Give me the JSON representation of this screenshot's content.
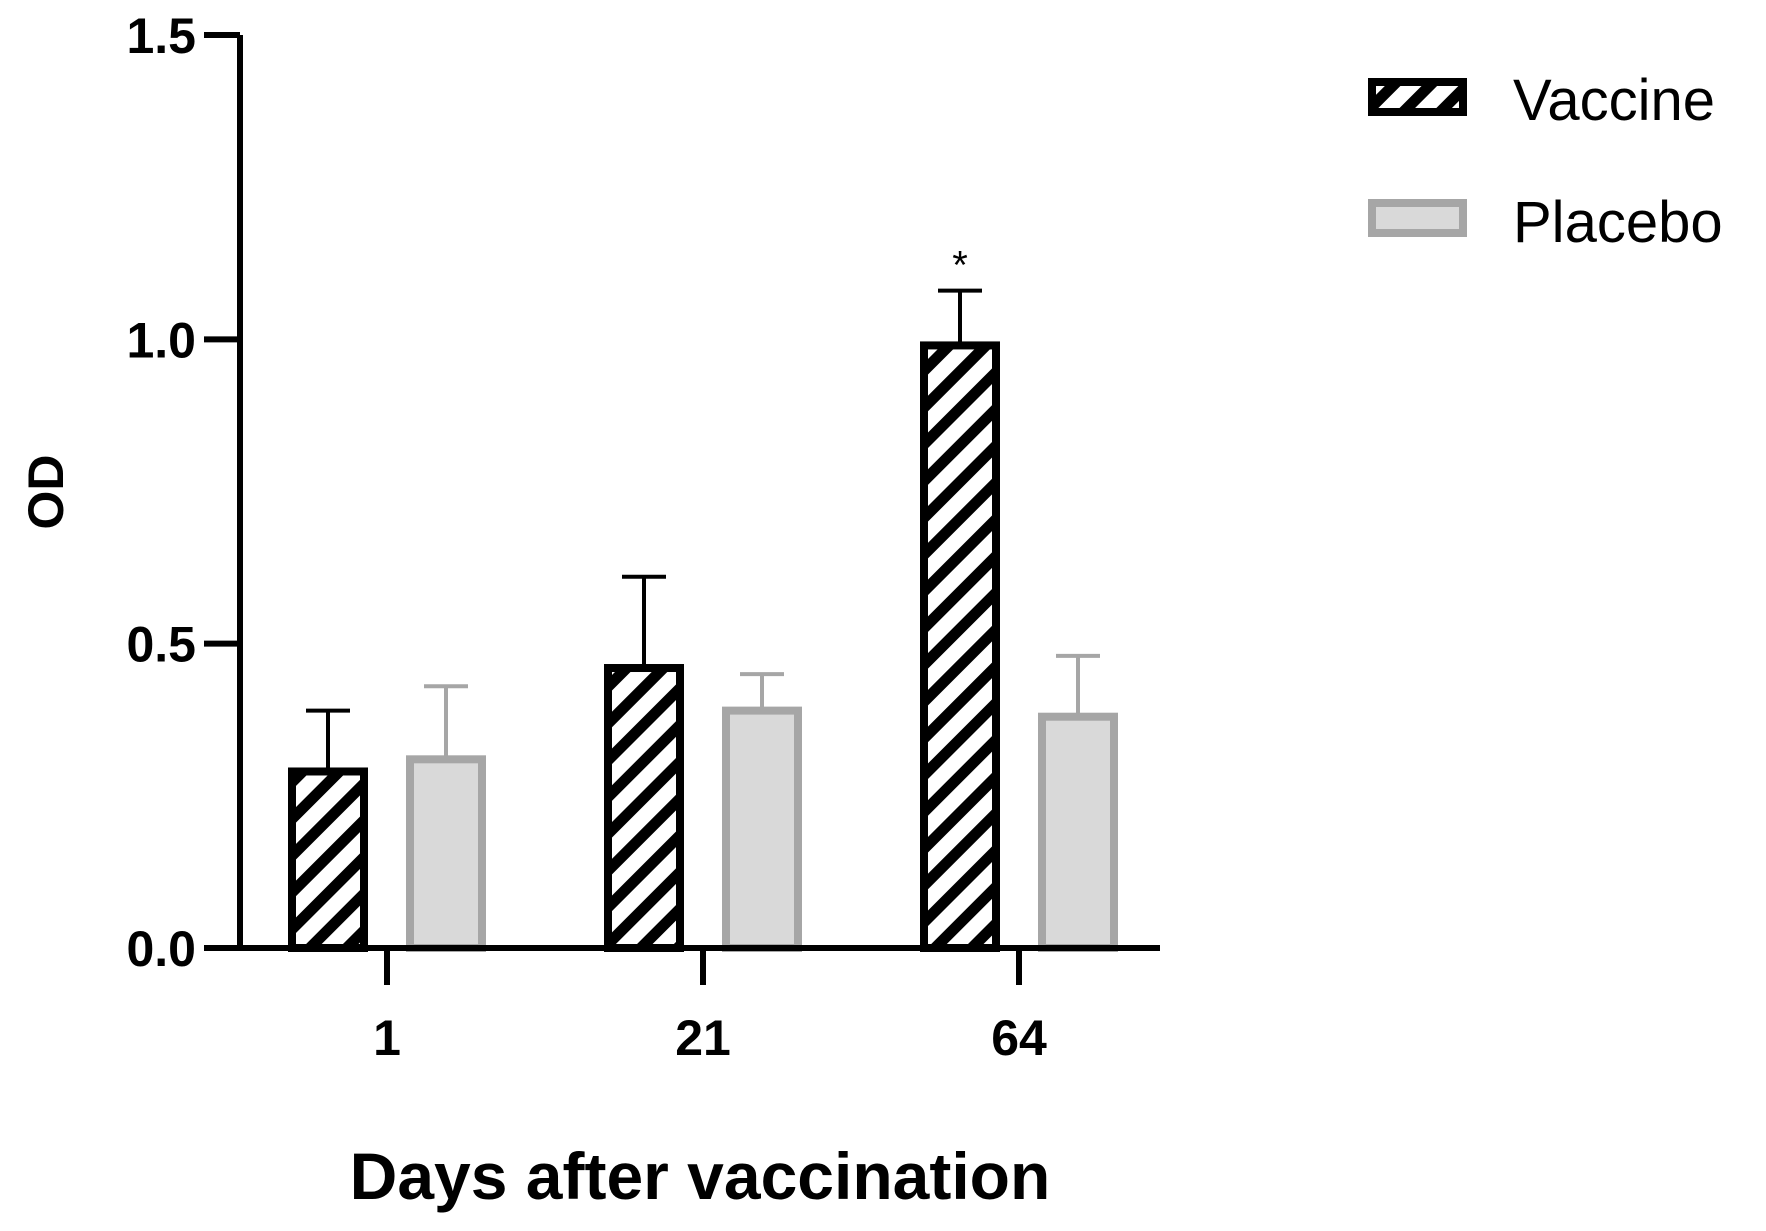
{
  "chart_data": {
    "type": "bar",
    "title": "",
    "xlabel": "Days after vaccination",
    "ylabel": "OD",
    "categories": [
      "1",
      "21",
      "64"
    ],
    "ylim": [
      0,
      1.5
    ],
    "yticks": [
      "0.0",
      "0.5",
      "1.0",
      "1.5"
    ],
    "grid": false,
    "legend_position": "top-right",
    "series": [
      {
        "name": "Vaccine",
        "values": [
          0.29,
          0.46,
          0.99
        ],
        "errors": [
          0.1,
          0.15,
          0.09
        ],
        "fill": "hatched",
        "color": "#000000"
      },
      {
        "name": "Placebo",
        "values": [
          0.31,
          0.39,
          0.38
        ],
        "errors": [
          0.12,
          0.06,
          0.1
        ],
        "fill": "#d9d9d9",
        "color": "#a6a6a6"
      }
    ],
    "annotations": [
      {
        "category": "64",
        "series": "Vaccine",
        "text": "*"
      }
    ]
  }
}
